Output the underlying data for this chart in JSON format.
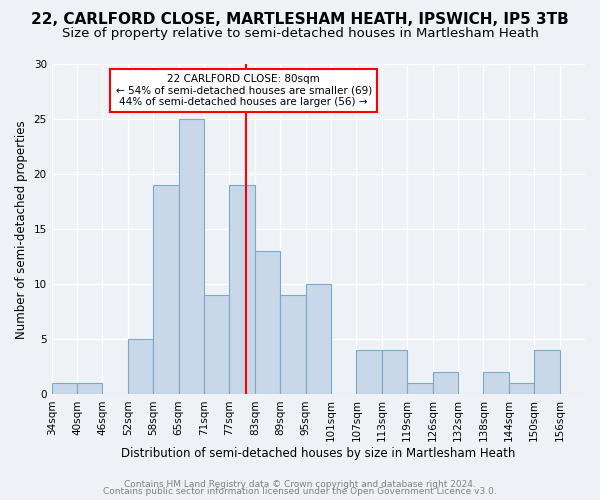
{
  "title": "22, CARLFORD CLOSE, MARTLESHAM HEATH, IPSWICH, IP5 3TB",
  "subtitle": "Size of property relative to semi-detached houses in Martlesham Heath",
  "xlabel": "Distribution of semi-detached houses by size in Martlesham Heath",
  "ylabel": "Number of semi-detached properties",
  "bins": [
    34,
    40,
    46,
    52,
    58,
    64,
    70,
    76,
    82,
    88,
    94,
    100,
    106,
    112,
    118,
    124,
    130,
    136,
    142,
    148,
    154,
    160
  ],
  "counts": [
    1,
    1,
    0,
    5,
    19,
    25,
    9,
    19,
    13,
    9,
    10,
    0,
    4,
    4,
    1,
    2,
    0,
    2,
    1,
    4,
    0
  ],
  "tick_labels": [
    "34sqm",
    "40sqm",
    "46sqm",
    "52sqm",
    "58sqm",
    "65sqm",
    "71sqm",
    "77sqm",
    "83sqm",
    "89sqm",
    "95sqm",
    "101sqm",
    "107sqm",
    "113sqm",
    "119sqm",
    "126sqm",
    "132sqm",
    "138sqm",
    "144sqm",
    "150sqm",
    "156sqm"
  ],
  "bar_color": "#c8d8e8",
  "bar_edge_color": "#7aaac8",
  "property_line_x": 80,
  "property_line_color": "red",
  "annotation_title": "22 CARLFORD CLOSE: 80sqm",
  "annotation_line1": "← 54% of semi-detached houses are smaller (69)",
  "annotation_line2": "44% of semi-detached houses are larger (56) →",
  "annotation_box_color": "white",
  "annotation_box_edge": "red",
  "ylim": [
    0,
    30
  ],
  "yticks": [
    0,
    5,
    10,
    15,
    20,
    25,
    30
  ],
  "background_color": "#eef2f7",
  "footer1": "Contains HM Land Registry data © Crown copyright and database right 2024.",
  "footer2": "Contains public sector information licensed under the Open Government Licence v3.0.",
  "title_fontsize": 11,
  "subtitle_fontsize": 9.5,
  "xlabel_fontsize": 8.5,
  "ylabel_fontsize": 8.5,
  "tick_fontsize": 7.5,
  "footer_fontsize": 6.5
}
